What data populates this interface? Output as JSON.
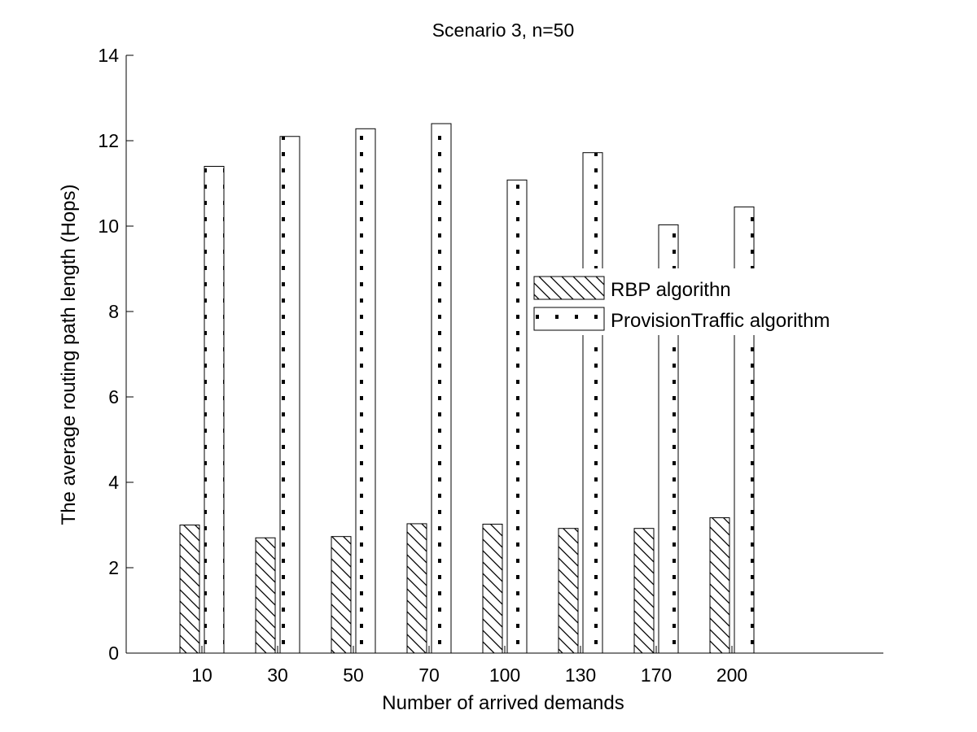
{
  "chart_data": {
    "type": "bar",
    "title": "Scenario 3, n=50",
    "xlabel": "Number of arrived demands",
    "ylabel": "The average routing path length (Hops)",
    "categories": [
      "10",
      "30",
      "50",
      "70",
      "100",
      "130",
      "170",
      "200"
    ],
    "series": [
      {
        "name": "RBP algorithn",
        "pattern": "diagonal-hatch",
        "values": [
          3.0,
          2.7,
          2.73,
          3.03,
          3.02,
          2.92,
          2.92,
          3.17
        ]
      },
      {
        "name": "ProvisionTraffic algorithm",
        "pattern": "dotted",
        "values": [
          11.4,
          12.1,
          12.28,
          12.4,
          11.08,
          11.72,
          10.03,
          10.45
        ]
      }
    ],
    "ylim": [
      0,
      14
    ],
    "yticks": [
      0,
      2,
      4,
      6,
      8,
      10,
      12,
      14
    ],
    "grid": false,
    "legend_position": "center-right",
    "colors": {
      "bar_fill": "#ffffff",
      "stroke": "#000000",
      "background": "#ffffff"
    }
  }
}
